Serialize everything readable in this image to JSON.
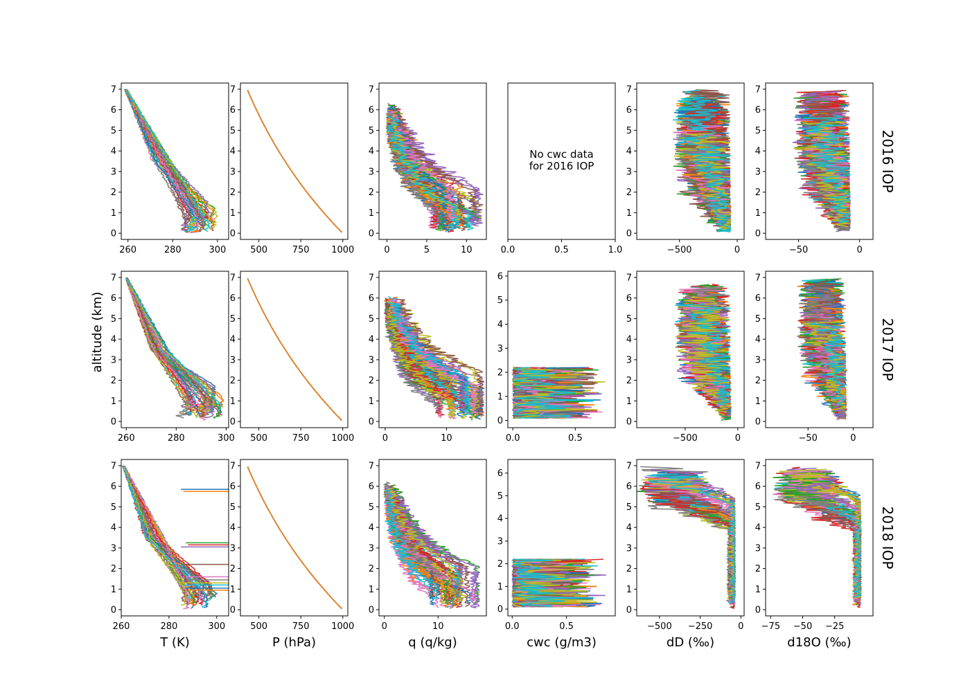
{
  "chart_data": {
    "type": "line",
    "ylabel": "altitude (km)",
    "columns": [
      {
        "key": "T",
        "xlabel": "T (K)"
      },
      {
        "key": "P",
        "xlabel": "P (hPa)"
      },
      {
        "key": "q",
        "xlabel": "q (q/kg)"
      },
      {
        "key": "cwc",
        "xlabel": "cwc (g/m3)"
      },
      {
        "key": "dD",
        "xlabel": "dD (‰)"
      },
      {
        "key": "d18O",
        "xlabel": "d18O (‰)"
      }
    ],
    "rows": [
      {
        "label": "2016 IOP",
        "panels": [
          {
            "xlim": [
              257,
              305
            ],
            "ylim": [
              -0.3,
              7.3
            ],
            "xticks": [
              260,
              280,
              300
            ],
            "yticks": [
              0,
              1,
              2,
              3,
              4,
              5,
              6,
              7
            ],
            "profile": {
              "kind": "T",
              "surface": [
                285,
                300
              ],
              "mid": [
                271,
                279
              ],
              "top": 259,
              "surface_top": 1.2,
              "jitter": 2.2
            }
          },
          {
            "xlim": [
              390,
              1030
            ],
            "ylim": [
              -0.3,
              7.3
            ],
            "xticks": [
              500,
              750,
              1000
            ],
            "yticks": [
              0,
              1,
              2,
              3,
              4,
              5,
              6,
              7
            ],
            "profile": {
              "kind": "P",
              "surface": 1000,
              "top": 420
            }
          },
          {
            "xlim": [
              -1,
              12.5
            ],
            "ylim": [
              -0.3,
              7.3
            ],
            "xticks": [
              0,
              5,
              10
            ],
            "yticks": [
              0,
              1,
              2,
              3,
              4,
              5,
              6,
              7
            ],
            "profile": {
              "kind": "q",
              "surface_max": 11.5,
              "top": 0,
              "jitter": 1.6
            }
          },
          {
            "xlim": [
              0,
              1
            ],
            "ylim": [
              0,
              1
            ],
            "xticks": [
              0.0,
              0.5,
              1.0
            ],
            "xtick_labels": [
              "0.0",
              "0.5",
              "1.0"
            ],
            "yticks": [],
            "empty": true,
            "note": [
              "No cwc data",
              "for 2016 IOP"
            ]
          },
          {
            "xlim": [
              -870,
              60
            ],
            "ylim": [
              -0.3,
              7.3
            ],
            "xticks": [
              -500,
              0
            ],
            "xtick_labels": [
              "−500",
              "0"
            ],
            "yticks": [
              0,
              1,
              2,
              3,
              4,
              5,
              6,
              7
            ],
            "profile": {
              "kind": "iso",
              "surface": -80,
              "spread_low": -750,
              "spread_high": -60,
              "jitter": 90
            }
          },
          {
            "xlim": [
              -77,
              11
            ],
            "ylim": [
              -0.3,
              7.3
            ],
            "xticks": [
              -50,
              0
            ],
            "xtick_labels": [
              "−50",
              "0"
            ],
            "yticks": [
              0,
              1,
              2,
              3,
              4,
              5,
              6,
              7
            ],
            "profile": {
              "kind": "iso",
              "surface": -10,
              "spread_low": -70,
              "spread_high": -8,
              "jitter": 9
            }
          }
        ]
      },
      {
        "label": "2017 IOP",
        "panels": [
          {
            "xlim": [
              258,
              301
            ],
            "ylim": [
              -0.3,
              7.3
            ],
            "xticks": [
              260,
              280,
              300
            ],
            "yticks": [
              0,
              1,
              2,
              3,
              4,
              5,
              6,
              7
            ],
            "profile": {
              "kind": "T",
              "surface": [
                284,
                299
              ],
              "mid": [
                269,
                277
              ],
              "top": 260,
              "surface_top": 1.5,
              "jitter": 1.6
            }
          },
          {
            "xlim": [
              390,
              1030
            ],
            "ylim": [
              -0.3,
              7.3
            ],
            "xticks": [
              500,
              750,
              1000
            ],
            "yticks": [
              0,
              1,
              2,
              3,
              4,
              5,
              6,
              7
            ],
            "profile": {
              "kind": "P",
              "surface": 1000,
              "top": 420
            }
          },
          {
            "xlim": [
              -1,
              16.5
            ],
            "ylim": [
              -0.3,
              7.3
            ],
            "xticks": [
              0,
              10
            ],
            "yticks": [
              0,
              1,
              2,
              3,
              4,
              5,
              6,
              7
            ],
            "profile": {
              "kind": "q",
              "surface_max": 15.5,
              "top": 0,
              "jitter": 1.8
            }
          },
          {
            "xlim": [
              -0.04,
              0.82
            ],
            "ylim": [
              -0.3,
              6.2
            ],
            "xticks": [
              0.0,
              0.5
            ],
            "xtick_labels": [
              "0.0",
              "0.5"
            ],
            "yticks": [
              0,
              1,
              2,
              3,
              4,
              5,
              6
            ],
            "profile": {
              "kind": "cwc",
              "max": 0.75,
              "upper": 0.45
            }
          },
          {
            "xlim": [
              -960,
              60
            ],
            "ylim": [
              -0.3,
              7.3
            ],
            "xticks": [
              -500,
              0
            ],
            "xtick_labels": [
              "−500",
              "0"
            ],
            "yticks": [
              0,
              1,
              2,
              3,
              4,
              5,
              6,
              7
            ],
            "profile": {
              "kind": "iso",
              "surface": -80,
              "spread_low": -850,
              "spread_high": -70,
              "jitter": 70
            }
          },
          {
            "xlim": [
              -97,
              22
            ],
            "ylim": [
              -0.3,
              7.3
            ],
            "xticks": [
              -50,
              0
            ],
            "xtick_labels": [
              "−50",
              "0"
            ],
            "yticks": [
              0,
              1,
              2,
              3,
              4,
              5,
              6,
              7
            ],
            "profile": {
              "kind": "iso",
              "surface": -10,
              "spread_low": -85,
              "spread_high": -8,
              "jitter": 8
            }
          }
        ]
      },
      {
        "label": "2018 IOP",
        "panels": [
          {
            "xlim": [
              260,
              305
            ],
            "ylim": [
              -0.3,
              7.3
            ],
            "xticks": [
              260,
              280,
              300
            ],
            "yticks": [
              0,
              1,
              2,
              3,
              4,
              5,
              6,
              7
            ],
            "profile": {
              "kind": "T",
              "surface": [
                287,
                300
              ],
              "mid": [
                270,
                278
              ],
              "top": 261,
              "surface_top": 1.1,
              "jitter": 1.8,
              "horizontal_levels": [
                5.85,
                5.75,
                3.25,
                3.15,
                3.05,
                2.2,
                1.6,
                1.45,
                1.3,
                1.2,
                1.05,
                0.95
              ]
            }
          },
          {
            "xlim": [
              390,
              1030
            ],
            "ylim": [
              -0.3,
              7.3
            ],
            "xticks": [
              500,
              750,
              1000
            ],
            "yticks": [
              0,
              1,
              2,
              3,
              4,
              5,
              6,
              7
            ],
            "profile": {
              "kind": "P",
              "surface": 1000,
              "top": 420
            }
          },
          {
            "xlim": [
              -1,
              19
            ],
            "ylim": [
              -0.3,
              7.3
            ],
            "xticks": [
              0,
              10
            ],
            "yticks": [
              0,
              1,
              2,
              3,
              4,
              5,
              6,
              7
            ],
            "profile": {
              "kind": "q",
              "surface_max": 17.5,
              "top": 0,
              "jitter": 1.4
            }
          },
          {
            "xlim": [
              -0.04,
              0.95
            ],
            "ylim": [
              -0.3,
              6.6
            ],
            "xticks": [
              0.0,
              0.5
            ],
            "xtick_labels": [
              "0.0",
              "0.5"
            ],
            "yticks": [
              0,
              1,
              2,
              3,
              4,
              5,
              6
            ],
            "profile": {
              "kind": "cwc",
              "max": 0.88,
              "upper": 0.05
            }
          },
          {
            "xlim": [
              -640,
              20
            ],
            "ylim": [
              -0.3,
              7.3
            ],
            "xticks": [
              -500,
              -250,
              0
            ],
            "xtick_labels": [
              "−500",
              "−250",
              "0"
            ],
            "yticks": [
              0,
              1,
              2,
              3,
              4,
              5,
              6,
              7
            ],
            "profile": {
              "kind": "iso18",
              "surface": -45,
              "spread_low": -620,
              "spread_high": -40,
              "jitter": 25
            }
          },
          {
            "xlim": [
              -79,
              5
            ],
            "ylim": [
              -0.3,
              7.3
            ],
            "xticks": [
              -75,
              -50,
              -25
            ],
            "xtick_labels": [
              "−75",
              "−50",
              "−25"
            ],
            "yticks": [
              0,
              1,
              2,
              3,
              4,
              5,
              6,
              7
            ],
            "profile": {
              "kind": "iso18",
              "surface": -6,
              "spread_low": -72,
              "spread_high": -5,
              "jitter": 3
            }
          }
        ]
      }
    ],
    "series_colors": [
      "#1f77b4",
      "#ff7f0e",
      "#2ca02c",
      "#d62728",
      "#9467bd",
      "#8c564b",
      "#e377c2",
      "#7f7f7f",
      "#bcbd22",
      "#17becf"
    ]
  }
}
